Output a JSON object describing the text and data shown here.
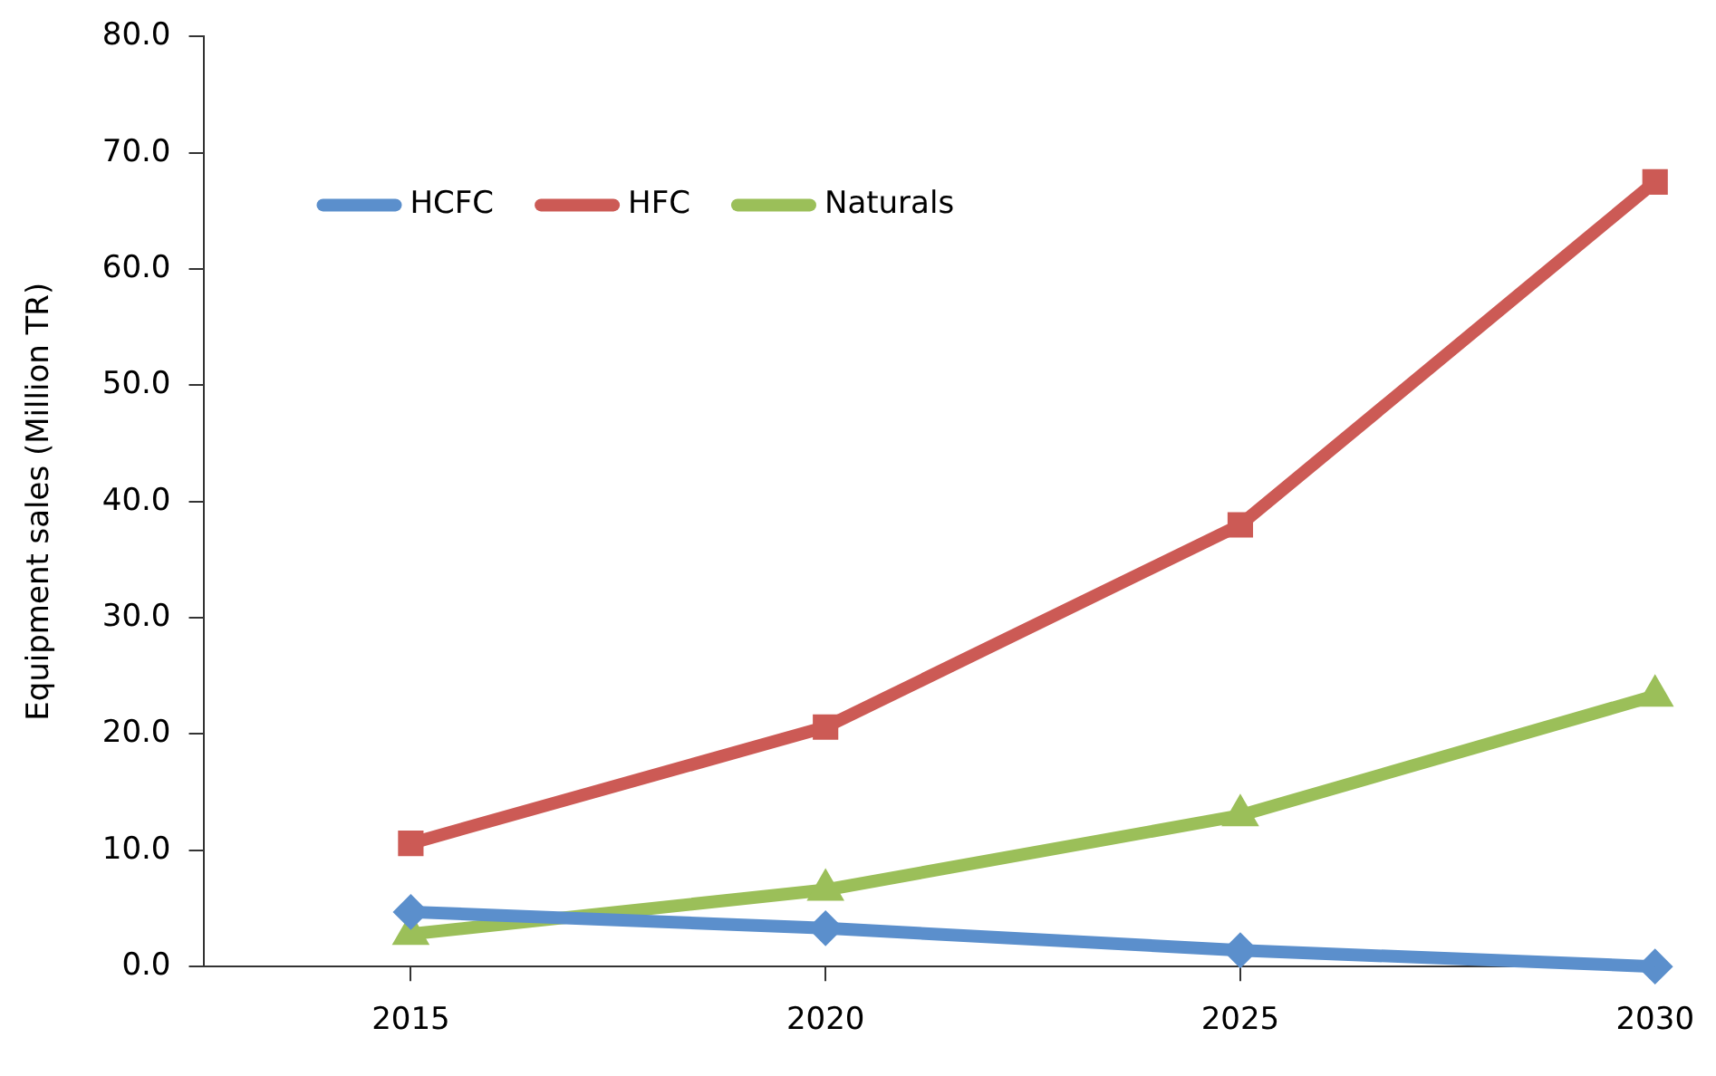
{
  "chart_data": {
    "type": "line",
    "ylabel": "Equipment sales (Million TR)",
    "x": [
      2015,
      2020,
      2025,
      2030
    ],
    "series": [
      {
        "name": "HCFC",
        "color": "#5b8fcc",
        "marker": "diamond",
        "values": [
          4.7,
          3.3,
          1.4,
          0.0
        ]
      },
      {
        "name": "HFC",
        "color": "#cc5a55",
        "marker": "square",
        "values": [
          10.6,
          20.6,
          38.0,
          67.5
        ]
      },
      {
        "name": "Naturals",
        "color": "#9bbf59",
        "marker": "triangle",
        "values": [
          2.8,
          6.6,
          13.0,
          23.3
        ]
      }
    ],
    "xlim": [
      2012.5,
      2030
    ],
    "xticks": [
      2015,
      2020,
      2025,
      2030
    ],
    "ylim": [
      0,
      80
    ],
    "yticks": [
      {
        "value": 0,
        "label": "0.0"
      },
      {
        "value": 10,
        "label": "10.0"
      },
      {
        "value": 20,
        "label": "20.0"
      },
      {
        "value": 30,
        "label": "30.0"
      },
      {
        "value": 40,
        "label": "40.0"
      },
      {
        "value": 50,
        "label": "50.0"
      },
      {
        "value": 60,
        "label": "60.0"
      },
      {
        "value": 70,
        "label": "70.0"
      },
      {
        "value": 80,
        "label": "80.0"
      }
    ],
    "grid": false,
    "legend": "top left",
    "line_style": "solid"
  }
}
